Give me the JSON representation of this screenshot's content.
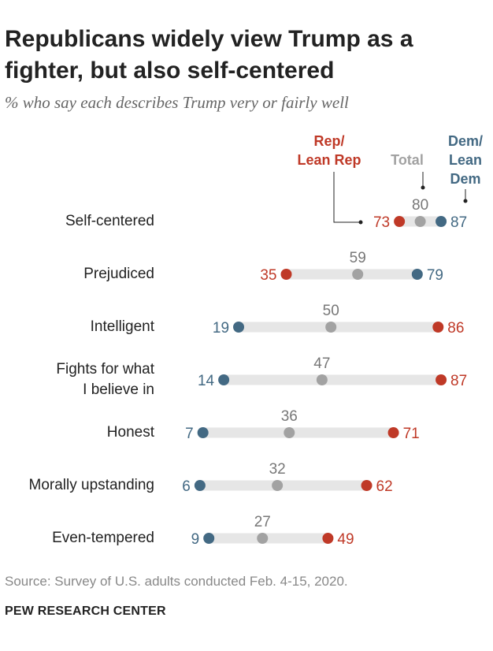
{
  "title": "Republicans widely view Trump as a fighter, but also self-centered",
  "subtitle": "% who say each describes Trump very or fairly well",
  "source": "Source: Survey of U.S. adults conducted Feb. 4-15, 2020.",
  "brand": "PEW RESEARCH CENTER",
  "colors": {
    "rep": "#bf3927",
    "total": "#a2a2a2",
    "dem": "#436983",
    "track": "#e6e6e6",
    "text": "#222222"
  },
  "legend": {
    "rep": [
      "Rep/",
      "Lean Rep"
    ],
    "total": "Total",
    "dem": [
      "Dem/",
      "Lean",
      "Dem"
    ]
  },
  "chart_data": {
    "type": "dot-range",
    "title": "Republicans widely view Trump as a fighter, but also self-centered",
    "subtitle": "% who say each describes Trump very or fairly well",
    "xlim": [
      0,
      100
    ],
    "series": [
      {
        "name": "Rep/Lean Rep",
        "key": "rep",
        "color": "#bf3927"
      },
      {
        "name": "Total",
        "key": "total",
        "color": "#a2a2a2"
      },
      {
        "name": "Dem/Lean Dem",
        "key": "dem",
        "color": "#436983"
      }
    ],
    "categories": [
      {
        "label": "Self-centered",
        "rep": 73,
        "total": 80,
        "dem": 87
      },
      {
        "label": "Prejudiced",
        "rep": 35,
        "total": 59,
        "dem": 79
      },
      {
        "label": "Intelligent",
        "rep": 86,
        "total": 50,
        "dem": 19
      },
      {
        "label": "Fights for what\nI believe in",
        "rep": 87,
        "total": 47,
        "dem": 14
      },
      {
        "label": "Honest",
        "rep": 71,
        "total": 36,
        "dem": 7
      },
      {
        "label": "Morally upstanding",
        "rep": 62,
        "total": 32,
        "dem": 6
      },
      {
        "label": "Even-tempered",
        "rep": 49,
        "total": 27,
        "dem": 9
      }
    ]
  }
}
